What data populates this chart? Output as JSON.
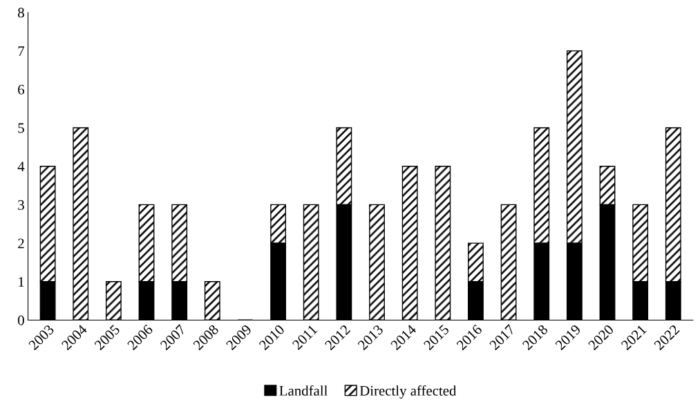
{
  "chart_data": {
    "type": "bar",
    "stacked": true,
    "categories": [
      "2003",
      "2004",
      "2005",
      "2006",
      "2007",
      "2008",
      "2009",
      "2010",
      "2011",
      "2012",
      "2013",
      "2014",
      "2015",
      "2016",
      "2017",
      "2018",
      "2019",
      "2020",
      "2021",
      "2022"
    ],
    "series": [
      {
        "name": "Landfall",
        "color": "#000000",
        "values": [
          1,
          0,
          0,
          1,
          1,
          0,
          0,
          2,
          0,
          3,
          0,
          0,
          0,
          1,
          0,
          2,
          2,
          3,
          1,
          1
        ]
      },
      {
        "name": "Directly affected",
        "color": "#000000",
        "values": [
          3,
          5,
          1,
          2,
          2,
          1,
          0,
          1,
          3,
          2,
          3,
          4,
          4,
          1,
          3,
          3,
          5,
          1,
          2,
          4
        ]
      }
    ],
    "ylim": [
      0,
      8
    ],
    "yticks": [
      0,
      1,
      2,
      3,
      4,
      5,
      6,
      7,
      8
    ],
    "grid": false,
    "legend": "bottom"
  }
}
